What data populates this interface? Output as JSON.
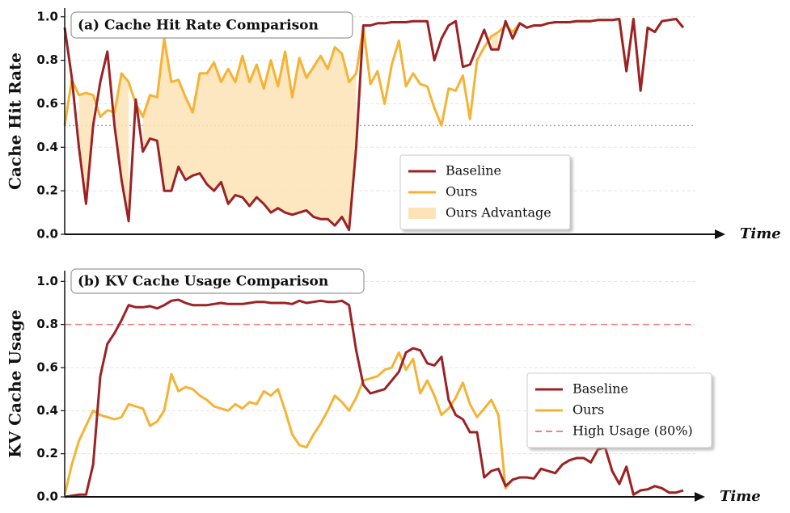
{
  "chart_data": [
    {
      "type": "line",
      "title": "(a) Cache Hit Rate Comparison",
      "ylabel": "Cache Hit Rate",
      "xlabel": "Time",
      "ylim": [
        0,
        1.04
      ],
      "yticks": [
        {
          "value": 0,
          "label": "0.0"
        },
        0.2,
        0.4,
        0.6,
        0.8,
        {
          "value": 1,
          "label": "1.0"
        }
      ],
      "grid": true,
      "legend": "center right",
      "hline": {
        "value": 0.5,
        "color": "#aaaaaa",
        "style": "dotted"
      },
      "fill_between": {
        "name": "Ours Advantage",
        "color": "#fde3b5"
      },
      "series": [
        {
          "name": "Baseline",
          "color": "#9b2226",
          "values": [
            0.95,
            0.72,
            0.4,
            0.14,
            0.5,
            0.7,
            0.84,
            0.5,
            0.25,
            0.06,
            0.62,
            0.38,
            0.44,
            0.43,
            0.2,
            0.2,
            0.31,
            0.25,
            0.27,
            0.28,
            0.23,
            0.2,
            0.24,
            0.14,
            0.18,
            0.17,
            0.13,
            0.17,
            0.14,
            0.1,
            0.12,
            0.1,
            0.09,
            0.1,
            0.11,
            0.08,
            0.07,
            0.07,
            0.04,
            0.08,
            0.02,
            0.4,
            0.96,
            0.96,
            0.97,
            0.97,
            0.975,
            0.975,
            0.975,
            0.98,
            0.98,
            0.98,
            0.8,
            0.9,
            0.96,
            0.98,
            0.77,
            0.78,
            0.86,
            0.94,
            0.85,
            0.85,
            0.98,
            0.9,
            0.97,
            0.95,
            0.96,
            0.96,
            0.97,
            0.975,
            0.975,
            0.975,
            0.98,
            0.98,
            0.98,
            0.985,
            0.985,
            0.985,
            0.99,
            0.75,
            0.99,
            0.66,
            0.95,
            0.93,
            0.98,
            0.985,
            0.99,
            0.95
          ]
        },
        {
          "name": "Ours",
          "color": "#f5b335",
          "values": [
            0.5,
            0.71,
            0.64,
            0.65,
            0.64,
            0.54,
            0.57,
            0.56,
            0.74,
            0.7,
            0.6,
            0.54,
            0.64,
            0.63,
            0.9,
            0.7,
            0.71,
            0.63,
            0.56,
            0.74,
            0.74,
            0.79,
            0.7,
            0.76,
            0.7,
            0.82,
            0.7,
            0.78,
            0.67,
            0.8,
            0.68,
            0.84,
            0.63,
            0.81,
            0.72,
            0.77,
            0.82,
            0.76,
            0.86,
            0.83,
            0.7,
            0.74,
            0.95,
            0.69,
            0.75,
            0.6,
            0.78,
            0.89,
            0.68,
            0.74,
            0.69,
            0.68,
            0.58,
            0.5,
            0.67,
            0.66,
            0.73,
            0.53,
            0.8,
            0.86,
            0.91,
            0.93,
            0.96,
            0.93,
            0.97,
            0.95,
            0.96,
            0.96,
            0.97,
            0.975,
            0.975,
            0.975,
            0.98,
            0.98,
            0.98,
            0.985,
            0.985,
            0.985,
            0.99,
            0.75,
            0.99,
            0.66,
            0.95,
            0.93,
            0.98,
            0.985,
            0.99,
            0.95
          ]
        }
      ]
    },
    {
      "type": "line",
      "title": "(b) KV Cache Usage Comparison",
      "ylabel": "KV Cache Usage",
      "xlabel": "Time",
      "ylim": [
        0,
        1.05
      ],
      "yticks": [
        {
          "value": 0,
          "label": "0.0"
        },
        0.2,
        0.4,
        0.6,
        0.8,
        {
          "value": 1,
          "label": "1.0"
        }
      ],
      "grid": true,
      "legend": "lower right",
      "hline": {
        "name": "High Usage (80%)",
        "value": 0.8,
        "color": "#f08080",
        "style": "dashed"
      },
      "series": [
        {
          "name": "Baseline",
          "color": "#9b2226",
          "values": [
            0.0,
            0.005,
            0.01,
            0.01,
            0.15,
            0.56,
            0.71,
            0.76,
            0.82,
            0.89,
            0.88,
            0.88,
            0.885,
            0.875,
            0.89,
            0.91,
            0.915,
            0.9,
            0.89,
            0.89,
            0.89,
            0.895,
            0.9,
            0.895,
            0.895,
            0.895,
            0.9,
            0.905,
            0.905,
            0.9,
            0.9,
            0.9,
            0.895,
            0.91,
            0.9,
            0.905,
            0.91,
            0.905,
            0.905,
            0.91,
            0.89,
            0.68,
            0.52,
            0.48,
            0.49,
            0.5,
            0.54,
            0.58,
            0.67,
            0.69,
            0.68,
            0.62,
            0.61,
            0.65,
            0.45,
            0.38,
            0.36,
            0.3,
            0.3,
            0.09,
            0.12,
            0.13,
            0.05,
            0.08,
            0.09,
            0.09,
            0.085,
            0.13,
            0.12,
            0.11,
            0.15,
            0.17,
            0.18,
            0.18,
            0.16,
            0.22,
            0.23,
            0.12,
            0.06,
            0.14,
            0.01,
            0.03,
            0.035,
            0.05,
            0.04,
            0.02,
            0.02,
            0.03
          ]
        },
        {
          "name": "Ours",
          "color": "#f5b335",
          "values": [
            0.01,
            0.15,
            0.26,
            0.33,
            0.4,
            0.38,
            0.37,
            0.36,
            0.37,
            0.43,
            0.42,
            0.41,
            0.33,
            0.35,
            0.4,
            0.57,
            0.49,
            0.51,
            0.5,
            0.47,
            0.45,
            0.42,
            0.41,
            0.4,
            0.43,
            0.41,
            0.44,
            0.43,
            0.49,
            0.47,
            0.5,
            0.4,
            0.29,
            0.24,
            0.23,
            0.29,
            0.34,
            0.4,
            0.47,
            0.44,
            0.4,
            0.46,
            0.54,
            0.55,
            0.56,
            0.59,
            0.6,
            0.67,
            0.59,
            0.64,
            0.48,
            0.54,
            0.47,
            0.38,
            0.41,
            0.46,
            0.53,
            0.43,
            0.37,
            0.41,
            0.45,
            0.38,
            0.04,
            0.08,
            0.09,
            0.09,
            0.085,
            0.13,
            0.12,
            0.11,
            0.15,
            0.17,
            0.18,
            0.18,
            0.16,
            0.22,
            0.23,
            0.12,
            0.06,
            0.14,
            0.01,
            0.03,
            0.035,
            0.05,
            0.04,
            0.02,
            0.02,
            0.03
          ]
        }
      ]
    }
  ]
}
